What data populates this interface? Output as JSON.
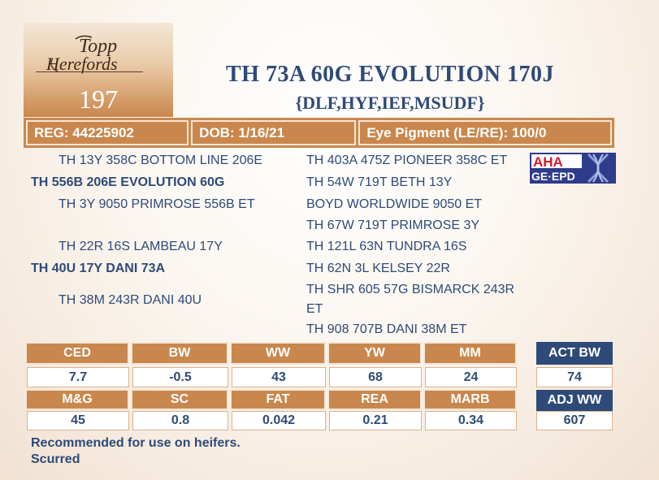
{
  "lot": {
    "farm_logo_line1": "Topp",
    "farm_logo_line2": "Herefords",
    "number": "197"
  },
  "animal": {
    "name": "TH 73A 60G EVOLUTION 170J",
    "tags": "{DLF,HYF,IEF,MSUDF}"
  },
  "info": {
    "reg": "REG: 44225902",
    "dob": "DOB: 1/16/21",
    "eye_pigment": "Eye Pigment (LE/RE): 100/0"
  },
  "pedigree": {
    "left": [
      {
        "text": "TH 13Y 358C BOTTOM LINE 206E",
        "bold": false
      },
      {
        "text": "TH 556B 206E EVOLUTION 60G",
        "bold": true
      },
      {
        "text": "TH 3Y 9050 PRIMROSE 556B ET",
        "bold": false
      },
      {
        "text": "TH 22R 16S LAMBEAU 17Y",
        "bold": false
      },
      {
        "text": "TH 40U 17Y DANI 73A",
        "bold": true
      },
      {
        "text": "TH 38M 243R DANI 40U",
        "bold": false
      }
    ],
    "right": [
      "TH 403A 475Z PIONEER 358C ET",
      "TH 54W 719T BETH 13Y",
      "BOYD WORLDWIDE 9050 ET",
      "TH 67W 719T PRIMROSE 3Y",
      "TH 121L 63N TUNDRA 16S",
      "TH 62N 3L KELSEY 22R",
      "TH SHR 605 57G BISMARCK 243R",
      "ET",
      "TH 908 707B DANI 38M ET"
    ]
  },
  "badge": {
    "line1": "AHA",
    "line2": "GE·EPD"
  },
  "epd": {
    "row1_headers": [
      "CED",
      "BW",
      "WW",
      "YW",
      "MM"
    ],
    "row1_values": [
      "7.7",
      "-0.5",
      "43",
      "68",
      "24"
    ],
    "row2_headers": [
      "M&G",
      "SC",
      "FAT",
      "REA",
      "MARB"
    ],
    "row2_values": [
      "45",
      "0.8",
      "0.042",
      "0.21",
      "0.34"
    ]
  },
  "actuals": {
    "bw_label": "ACT BW",
    "bw_value": "74",
    "ww_label": "ADJ WW",
    "ww_value": "607"
  },
  "notes": {
    "line1": "Recommended for use on heifers.",
    "line2": "Scurred"
  },
  "colors": {
    "accent_tan": "#c9874d",
    "navy": "#2e4a78"
  }
}
